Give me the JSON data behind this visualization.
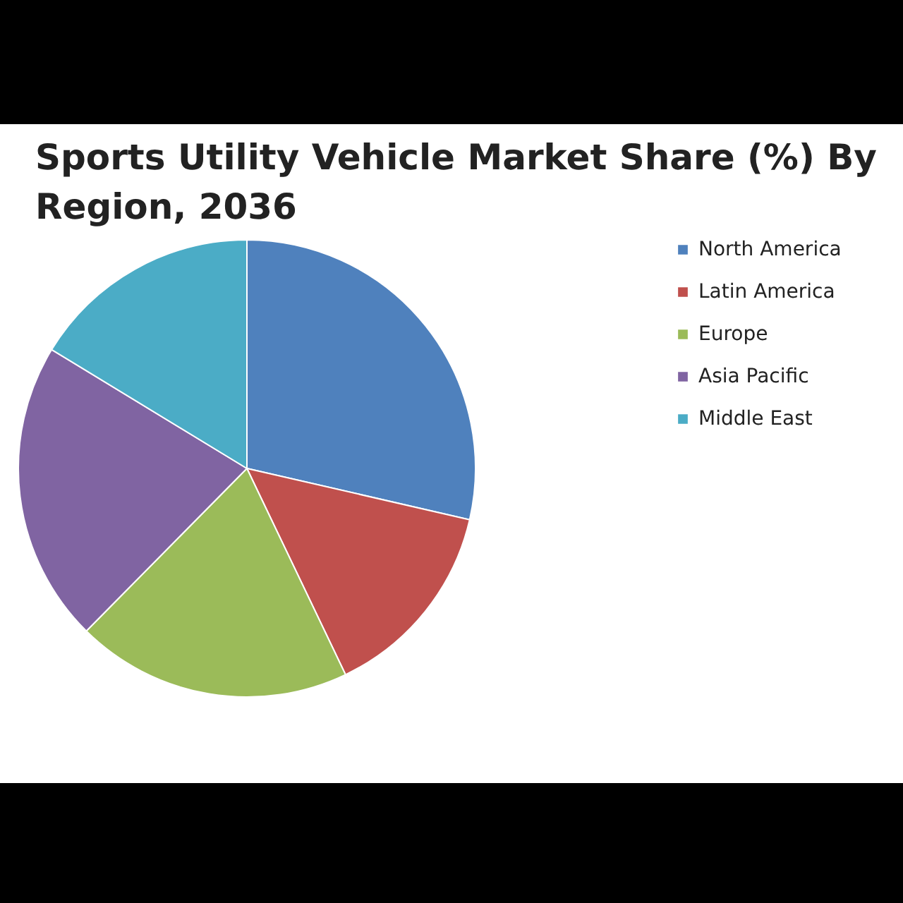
{
  "chart_data": {
    "type": "pie",
    "title": "Sports Utility Vehicle Market Share (%) By Region, 2036",
    "categories": [
      "North America",
      "Latin America",
      "Europe",
      "Asia Pacific",
      "Middle East"
    ],
    "values": [
      28.6,
      14.3,
      19.5,
      21.3,
      16.3
    ],
    "colors": [
      "#4f81bd",
      "#c0504d",
      "#9bbb59",
      "#8064a2",
      "#4bacc6"
    ],
    "legend": "right"
  }
}
